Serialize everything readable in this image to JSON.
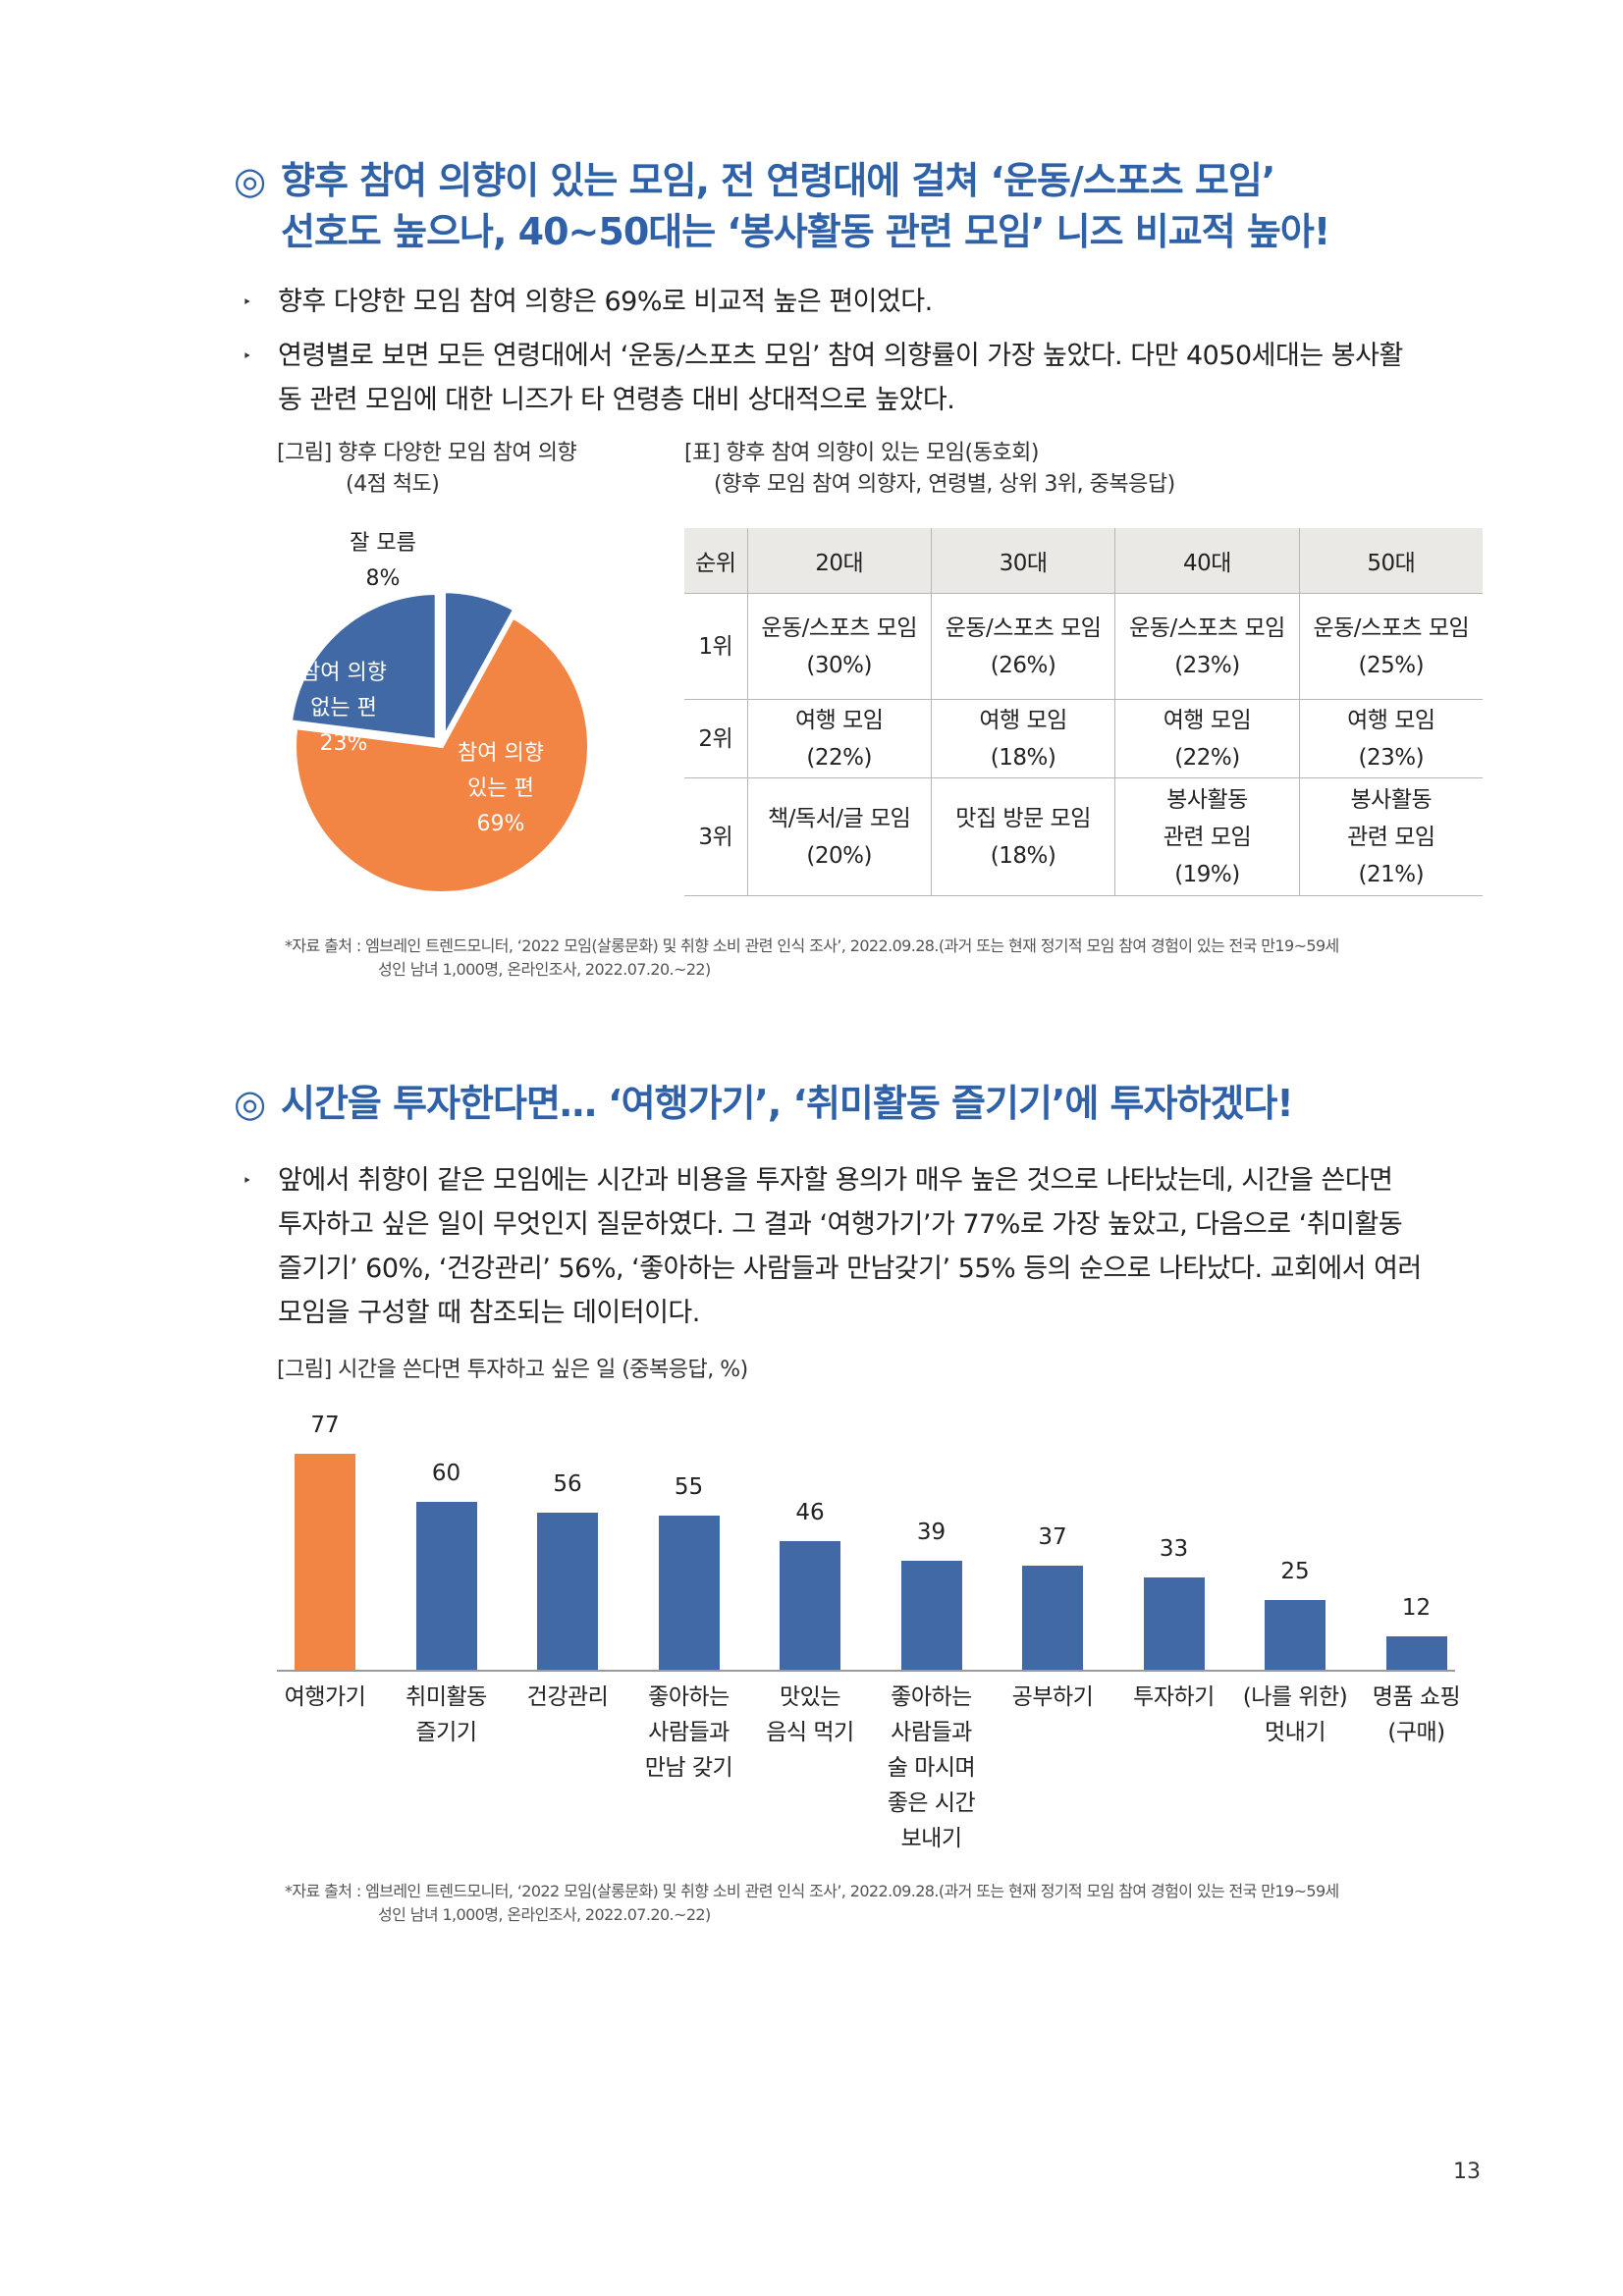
{
  "section1": {
    "heading_line1": "향후 참여 의향이 있는 모임, 전 연령대에 걸쳐 ‘운동/스포츠 모임’",
    "heading_line2": "선호도 높으나, 40~50대는 ‘봉사활동 관련 모임’ 니즈 비교적 높아!",
    "mark": "◎",
    "bullet_marker": "‣",
    "bullets": [
      "향후 다양한 모임 참여 의향은 69%로 비교적 높은 편이었다.",
      "연령별로 보면 모든 연령대에서 ‘운동/스포츠 모임’ 참여 의향률이 가장 높았다. 다만 4050세대는 봉사활",
      "동 관련 모임에 대한 니즈가 타 연령층 대비 상대적으로 높았다."
    ],
    "pie_caption_line1": "[그림] 향후 다양한 모임 참여 의향",
    "pie_caption_line2": "(4점 척도)",
    "table_caption_line1": "[표] 향후 참여 의향이 있는 모임(동호회)",
    "table_caption_line2": "(향후 모임 참여 의향자, 연령별, 상위 3위, 중복응답)",
    "pie": {
      "slices": [
        {
          "label_line1": "참여 의향",
          "label_line2": "있는 편",
          "value_label": "69%",
          "value": 69,
          "color": "#f28444"
        },
        {
          "label_line1": "참여 의향",
          "label_line2": "없는 편",
          "value_label": "23%",
          "value": 23,
          "color": "#4169a6"
        },
        {
          "label_line1": "잘 모름",
          "value_label": "8%",
          "value": 8,
          "color": "#4169a6"
        }
      ]
    },
    "table": {
      "headers": [
        "순위",
        "20대",
        "30대",
        "40대",
        "50대"
      ],
      "rows": [
        {
          "rank": "1위",
          "cells": [
            [
              "운동/스포츠 모임",
              "(30%)"
            ],
            [
              "운동/스포츠 모임",
              "(26%)"
            ],
            [
              "운동/스포츠 모임",
              "(23%)"
            ],
            [
              "운동/스포츠 모임",
              "(25%)"
            ]
          ]
        },
        {
          "rank": "2위",
          "cells": [
            [
              "여행 모임",
              "(22%)"
            ],
            [
              "여행 모임",
              "(18%)"
            ],
            [
              "여행 모임",
              "(22%)"
            ],
            [
              "여행 모임",
              "(23%)"
            ]
          ]
        },
        {
          "rank": "3위",
          "cells": [
            [
              "책/독서/글 모임",
              "(20%)"
            ],
            [
              "맛집 방문 모임",
              "(18%)"
            ],
            [
              "봉사활동",
              "관련 모임",
              "(19%)"
            ],
            [
              "봉사활동",
              "관련 모임",
              "(21%)"
            ]
          ]
        }
      ]
    },
    "source_line1": "*자료 출처 : 엠브레인 트렌드모니터, ‘2022 모임(살롱문화) 및 취향 소비 관련 인식 조사’, 2022.09.28.(과거 또는 현재 정기적 모임 참여 경험이 있는 전국 만19~59세",
    "source_line2": "성인 남녀 1,000명, 온라인조사, 2022.07.20.~22)"
  },
  "section2": {
    "heading": "시간을 투자한다면… ‘여행가기’, ‘취미활동 즐기기’에 투자하겠다!",
    "mark": "◎",
    "bullet_marker": "‣",
    "bullets": [
      "앞에서 취향이 같은 모임에는 시간과 비용을 투자할 용의가 매우 높은 것으로 나타났는데, 시간을 쓴다면",
      "투자하고 싶은 일이 무엇인지 질문하였다. 그 결과 ‘여행가기’가 77%로 가장 높았고, 다음으로 ‘취미활동",
      "즐기기’ 60%, ‘건강관리’ 56%, ‘좋아하는 사람들과 만남갖기’ 55% 등의 순으로 나타났다. 교회에서 여러",
      "모임을 구성할 때 참조되는 데이터이다."
    ],
    "chart_caption": "[그림] 시간을 쓴다면 투자하고 싶은 일 (중복응답, %)",
    "source_line1": "*자료 출처 : 엠브레인 트렌드모니터, ‘2022 모임(살롱문화) 및 취향 소비 관련 인식 조사’, 2022.09.28.(과거 또는 현재 정기적 모임 참여 경험이 있는 전국 만19~59세",
    "source_line2": "성인 남녀 1,000명, 온라인조사, 2022.07.20.~22)"
  },
  "chart_data": {
    "type": "bar",
    "categories": [
      [
        "여행가기"
      ],
      [
        "취미활동",
        "즐기기"
      ],
      [
        "건강관리"
      ],
      [
        "좋아하는",
        "사람들과",
        "만남 갖기"
      ],
      [
        "맛있는",
        "음식 먹기"
      ],
      [
        "좋아하는",
        "사람들과",
        "술 마시며",
        "좋은 시간",
        "보내기"
      ],
      [
        "공부하기"
      ],
      [
        "투자하기"
      ],
      [
        "(나를 위한)",
        "멋내기"
      ],
      [
        "명품 쇼핑",
        "(구매)"
      ]
    ],
    "values": [
      77,
      60,
      56,
      55,
      46,
      39,
      37,
      33,
      25,
      12
    ],
    "highlight_color": "#f28444",
    "bar_color": "#4169a6",
    "grid": false,
    "legend": "none"
  },
  "page_number": "13"
}
